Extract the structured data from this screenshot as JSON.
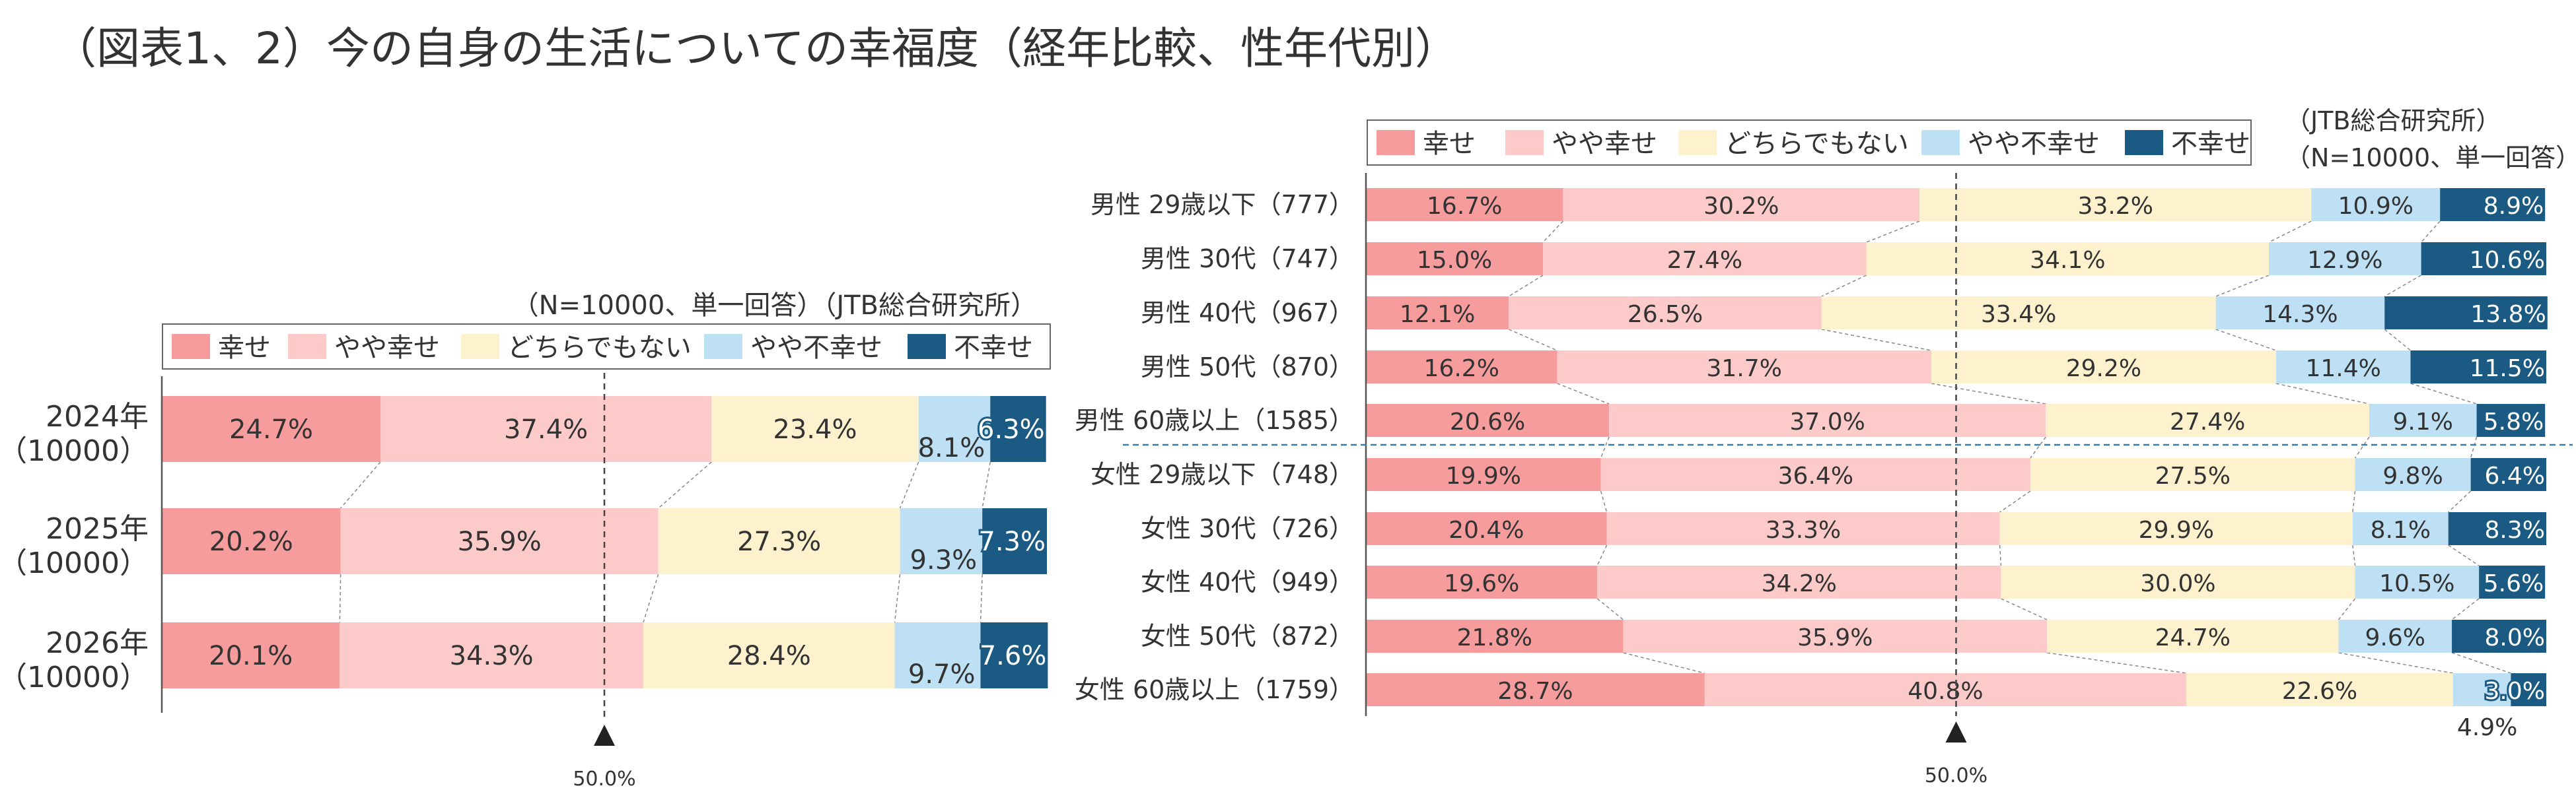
{
  "page_title": "（図表1、2）今の自身の生活についての幸福度（経年比較、性年代別）",
  "colors": {
    "very_happy": "#f79c9c",
    "somewhat_happy": "#fdcaca",
    "neutral": "#fdf2cd",
    "somewhat_unhappy": "#bde0f4",
    "unhappy": "#1b5a82"
  },
  "chart_data": [
    {
      "type": "bar",
      "orientation": "horizontal-stacked-percent",
      "note": "（N=10000、単一回答）（JTB総合研究所）",
      "legend": [
        "幸せ",
        "やや幸せ",
        "どちらでもない",
        "やや不幸せ",
        "不幸せ"
      ],
      "categories": [
        {
          "line1": "2024年",
          "line2": "（10000）"
        },
        {
          "line1": "2025年",
          "line2": "（10000）"
        },
        {
          "line1": "2026年",
          "line2": "（10000）"
        }
      ],
      "series": [
        {
          "name": "幸せ",
          "values": [
            24.7,
            20.2,
            20.1
          ]
        },
        {
          "name": "やや幸せ",
          "values": [
            37.4,
            35.9,
            34.3
          ]
        },
        {
          "name": "どちらでもない",
          "values": [
            23.4,
            27.3,
            28.4
          ]
        },
        {
          "name": "やや不幸せ",
          "values": [
            8.1,
            9.3,
            9.7
          ]
        },
        {
          "name": "不幸せ",
          "values": [
            6.3,
            7.3,
            7.6
          ]
        }
      ],
      "value_labels": [
        [
          "24.7%",
          "37.4%",
          "23.4%",
          "8.1%",
          "6.3%"
        ],
        [
          "20.2%",
          "35.9%",
          "27.3%",
          "9.3%",
          "7.3%"
        ],
        [
          "20.1%",
          "34.3%",
          "28.4%",
          "9.7%",
          "7.6%"
        ]
      ],
      "reference_line": {
        "value": 50,
        "label": "50.0%"
      },
      "xlim": [
        0,
        100
      ]
    },
    {
      "type": "bar",
      "orientation": "horizontal-stacked-percent",
      "note_line1": "（JTB総合研究所）",
      "note_line2": "（N=10000、単一回答）",
      "legend": [
        "幸せ",
        "やや幸せ",
        "どちらでもない",
        "やや不幸せ",
        "不幸せ"
      ],
      "categories": [
        "男性 29歳以下（777）",
        "男性 30代（747）",
        "男性 40代（967）",
        "男性 50代（870）",
        "男性 60歳以上（1585）",
        "女性 29歳以下（748）",
        "女性 30代（726）",
        "女性 40代（949）",
        "女性 50代（872）",
        "女性 60歳以上（1759）"
      ],
      "series": [
        {
          "name": "幸せ",
          "values": [
            16.7,
            15.0,
            12.1,
            16.2,
            20.6,
            19.9,
            20.4,
            19.6,
            21.8,
            28.7
          ]
        },
        {
          "name": "やや幸せ",
          "values": [
            30.2,
            27.4,
            26.5,
            31.7,
            37.0,
            36.4,
            33.3,
            34.2,
            35.9,
            40.8
          ]
        },
        {
          "name": "どちらでもない",
          "values": [
            33.2,
            34.1,
            33.4,
            29.2,
            27.4,
            27.5,
            29.9,
            30.0,
            24.7,
            22.6
          ]
        },
        {
          "name": "やや不幸せ",
          "values": [
            10.9,
            12.9,
            14.3,
            11.4,
            9.1,
            9.8,
            8.1,
            10.5,
            9.6,
            4.9
          ]
        },
        {
          "name": "不幸せ",
          "values": [
            8.9,
            10.6,
            13.8,
            11.5,
            5.8,
            6.4,
            8.3,
            5.6,
            8.0,
            3.0
          ]
        }
      ],
      "value_labels": [
        [
          "16.7%",
          "30.2%",
          "33.2%",
          "10.9%",
          "8.9%"
        ],
        [
          "15.0%",
          "27.4%",
          "34.1%",
          "12.9%",
          "10.6%"
        ],
        [
          "12.1%",
          "26.5%",
          "33.4%",
          "14.3%",
          "13.8%"
        ],
        [
          "16.2%",
          "31.7%",
          "29.2%",
          "11.4%",
          "11.5%"
        ],
        [
          "20.6%",
          "37.0%",
          "27.4%",
          "9.1%",
          "5.8%"
        ],
        [
          "19.9%",
          "36.4%",
          "27.5%",
          "9.8%",
          "6.4%"
        ],
        [
          "20.4%",
          "33.3%",
          "29.9%",
          "8.1%",
          "8.3%"
        ],
        [
          "19.6%",
          "34.2%",
          "30.0%",
          "10.5%",
          "5.6%"
        ],
        [
          "21.8%",
          "35.9%",
          "24.7%",
          "9.6%",
          "8.0%"
        ],
        [
          "28.7%",
          "40.8%",
          "22.6%",
          "4.9%",
          "3.0%"
        ]
      ],
      "reference_line": {
        "value": 50,
        "label": "50.0%"
      },
      "xlim": [
        0,
        100
      ]
    }
  ]
}
